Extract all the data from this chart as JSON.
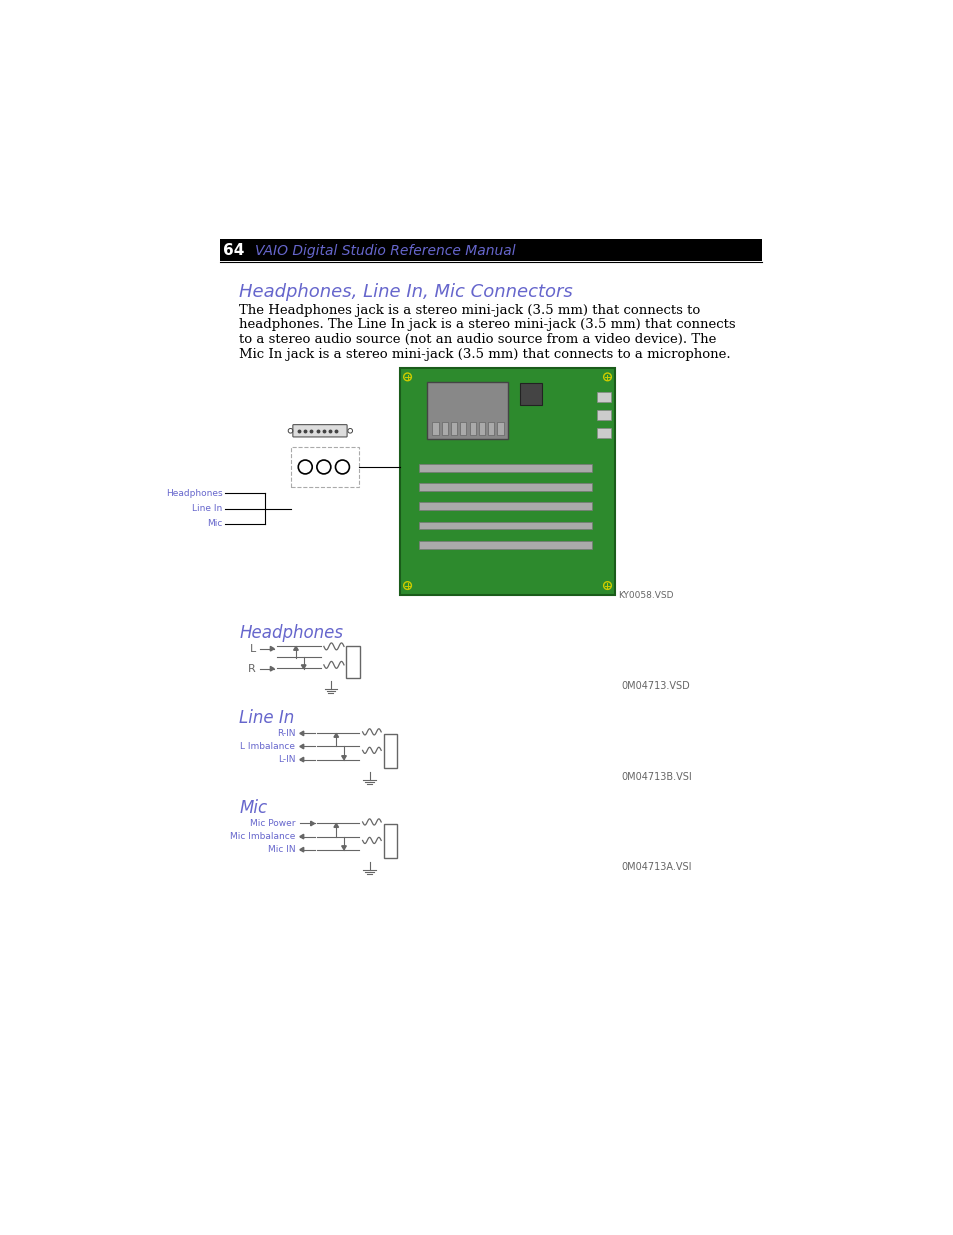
{
  "page_number": "64",
  "header_title": "VAIO Digital Studio Reference Manual",
  "section_title": "Headphones, Line In, Mic Connectors",
  "body_text": [
    "The Headphones jack is a stereo mini-jack (3.5 mm) that connects to",
    "headphones. The Line In jack is a stereo mini-jack (3.5 mm) that connects",
    "to a stereo audio source (not an audio source from a video device). The",
    "Mic In jack is a stereo mini-jack (3.5 mm) that connects to a microphone."
  ],
  "subsection1": "Headphones",
  "subsection2": "Line In",
  "subsection3": "Mic",
  "diagram1_label": "KY0058.VSD",
  "diagram2_label": "0M04713.VSD",
  "diagram3_label": "0M04713B.VSI",
  "diagram4_label": "0M04713A.VSI",
  "connector_labels": [
    "Headphones",
    "Line In",
    "Mic"
  ],
  "headphones_labels": [
    "L",
    "R"
  ],
  "linein_labels": [
    "R-IN",
    "L Imbalance",
    "L-IN"
  ],
  "mic_labels": [
    "Mic Power",
    "Mic Imbalance",
    "Mic IN"
  ],
  "bg_color": "#ffffff",
  "header_bg": "#000000",
  "header_text_color": "#ffffff",
  "title_color": "#6666cc",
  "body_text_color": "#000000",
  "connector_label_color": "#6666cc",
  "diagram_label_color": "#666666",
  "line_color": "#000000",
  "circuit_color": "#666666",
  "board_color": "#2d8a2d"
}
